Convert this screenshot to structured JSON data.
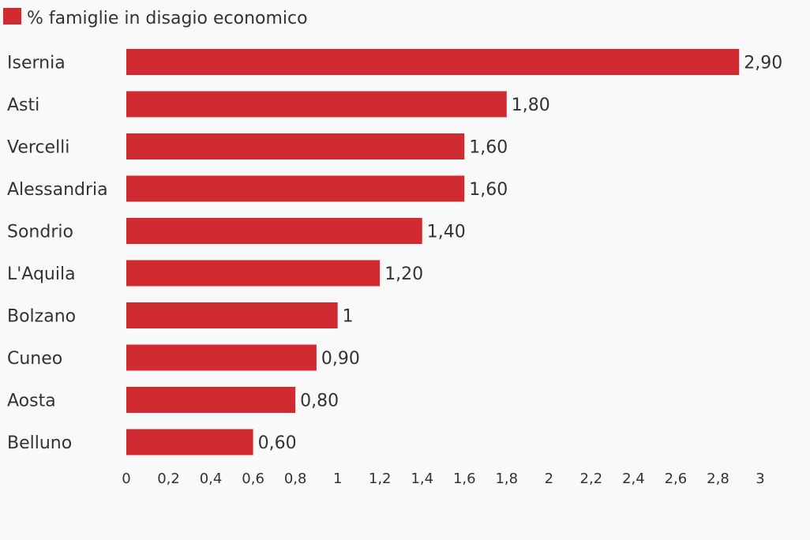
{
  "chart_data": {
    "type": "bar",
    "orientation": "horizontal",
    "series": [
      {
        "name": "% famiglie in disagio economico",
        "color": "#d02b31",
        "values": [
          2.9,
          1.8,
          1.6,
          1.6,
          1.4,
          1.2,
          1,
          0.9,
          0.8,
          0.6
        ]
      }
    ],
    "categories": [
      "Isernia",
      "Asti",
      "Vercelli",
      "Alessandria",
      "Sondrio",
      "L'Aquila",
      "Bolzano",
      "Cuneo",
      "Aosta",
      "Belluno"
    ],
    "value_labels": [
      "2,90",
      "1,80",
      "1,60",
      "1,60",
      "1,40",
      "1,20",
      "1",
      "0,90",
      "0,80",
      "0,60"
    ],
    "xlim": [
      0,
      3
    ],
    "x_ticks": [
      0,
      0.2,
      0.4,
      0.6,
      0.8,
      1,
      1.2,
      1.4,
      1.6,
      1.8,
      2,
      2.2,
      2.4,
      2.6,
      2.8,
      3
    ],
    "x_tick_labels": [
      "0",
      "0,2",
      "0,4",
      "0,6",
      "0,8",
      "1",
      "1,2",
      "1,4",
      "1,6",
      "1,8",
      "2",
      "2,2",
      "2,4",
      "2,6",
      "2,8",
      "3"
    ],
    "legend_position": "top-left",
    "grid": false
  }
}
